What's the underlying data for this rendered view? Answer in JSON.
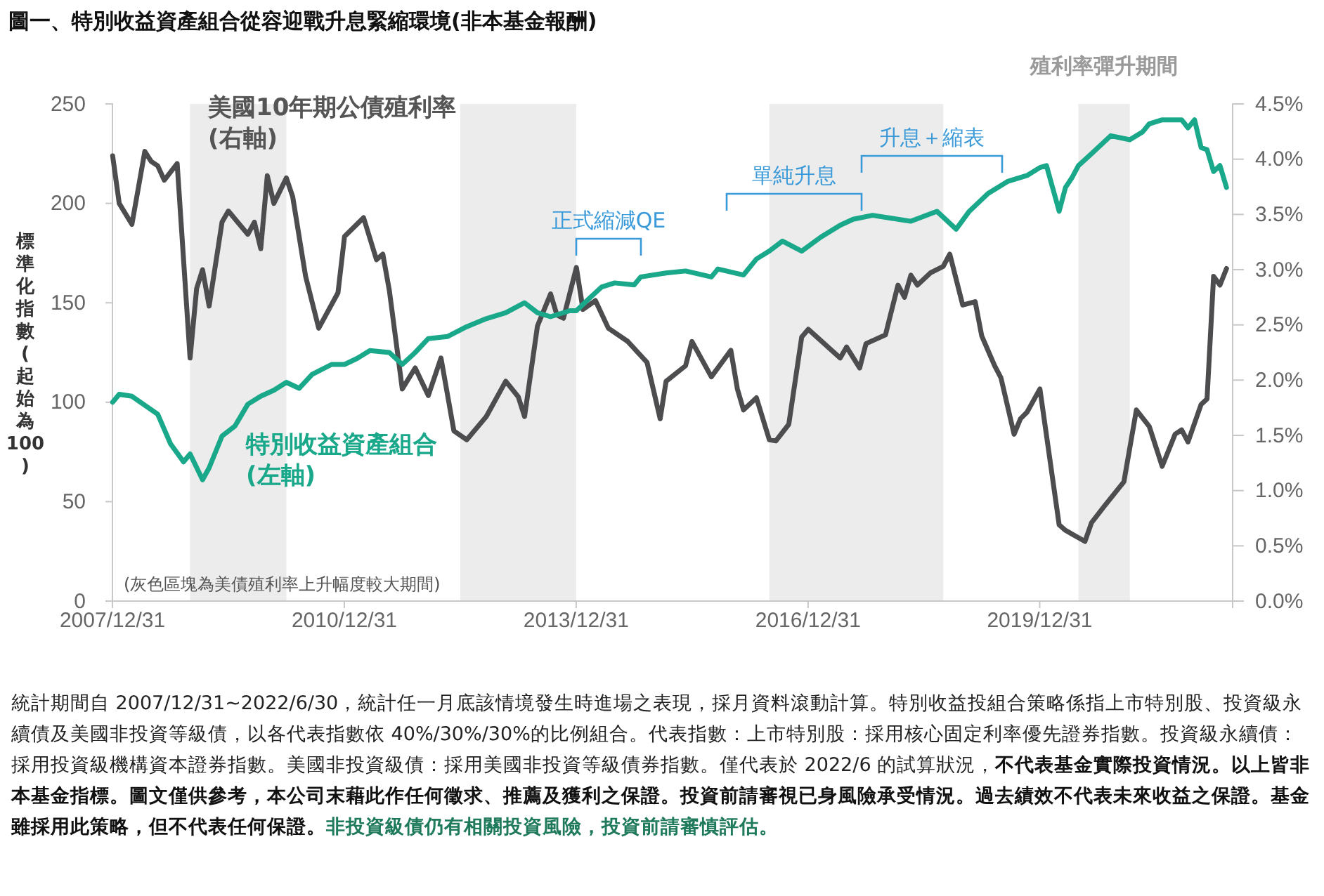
{
  "chart_data": {
    "type": "line",
    "title": "圖一、特別收益資產組合從容迎戰升息緊縮環境(非本基金報酬)",
    "ylabel": "標準化指數(起始為100)",
    "xlim": [
      "2007-12-31",
      "2022-06-30"
    ],
    "xticks": [
      {
        "value": "2007-12-31",
        "label": "2007/12/31"
      },
      {
        "value": "2010-12-31",
        "label": "2010/12/31"
      },
      {
        "value": "2013-12-31",
        "label": "2013/12/31"
      },
      {
        "value": "2016-12-31",
        "label": "2016/12/31"
      },
      {
        "value": "2019-12-31",
        "label": "2019/12/31"
      }
    ],
    "ylim": [
      0,
      250
    ],
    "yticks": [
      0,
      50,
      100,
      150,
      200,
      250
    ],
    "y2lim": [
      0,
      4.5
    ],
    "y2ticks": [
      {
        "value": 0,
        "label": "0.0%"
      },
      {
        "value": 0.5,
        "label": "0.5%"
      },
      {
        "value": 1,
        "label": "1.0%"
      },
      {
        "value": 1.5,
        "label": "1.5%"
      },
      {
        "value": 2,
        "label": "2.0%"
      },
      {
        "value": 2.5,
        "label": "2.5%"
      },
      {
        "value": 3,
        "label": "3.0%"
      },
      {
        "value": 3.5,
        "label": "3.5%"
      },
      {
        "value": 4,
        "label": "4.0%"
      },
      {
        "value": 4.5,
        "label": "4.5%"
      }
    ],
    "grid": false,
    "series": [
      {
        "name": "美國10年期公債殖利率 (右軸)",
        "color": "#4d4d4f",
        "axis": "y2",
        "x": [
          "2008-01",
          "2008-02",
          "2008-04",
          "2008-06",
          "2008-07",
          "2008-08",
          "2008-09",
          "2008-11",
          "2009-01",
          "2009-02",
          "2009-03",
          "2009-04",
          "2009-06",
          "2009-07",
          "2009-10",
          "2009-11",
          "2009-12",
          "2010-01",
          "2010-02",
          "2010-04",
          "2010-05",
          "2010-07",
          "2010-09",
          "2010-12",
          "2011-01",
          "2011-04",
          "2011-06",
          "2011-07",
          "2011-08",
          "2011-10",
          "2011-12",
          "2012-02",
          "2012-04",
          "2012-06",
          "2012-08",
          "2012-11",
          "2013-02",
          "2013-04",
          "2013-05",
          "2013-07",
          "2013-09",
          "2013-10",
          "2013-11",
          "2014-01",
          "2014-02",
          "2014-04",
          "2014-06",
          "2014-09",
          "2014-12",
          "2015-02",
          "2015-03",
          "2015-06",
          "2015-07",
          "2015-10",
          "2016-01",
          "2016-02",
          "2016-03",
          "2016-05",
          "2016-07",
          "2016-08",
          "2016-10",
          "2016-12",
          "2017-01",
          "2017-06",
          "2017-07",
          "2017-09",
          "2017-10",
          "2018-01",
          "2018-03",
          "2018-04",
          "2018-05",
          "2018-06",
          "2018-08",
          "2018-10",
          "2018-11",
          "2019-01",
          "2019-03",
          "2019-04",
          "2019-06",
          "2019-07",
          "2019-09",
          "2019-10",
          "2019-11",
          "2020-01",
          "2020-04",
          "2020-05",
          "2020-08",
          "2020-09",
          "2020-11",
          "2021-02",
          "2021-04",
          "2021-06",
          "2021-08",
          "2021-10",
          "2021-11",
          "2021-12",
          "2022-02",
          "2022-03",
          "2022-04",
          "2022-05",
          "2022-06"
        ],
        "values": [
          4.03,
          3.6,
          3.41,
          4.07,
          3.98,
          3.94,
          3.81,
          3.96,
          2.2,
          2.83,
          3.0,
          2.67,
          3.43,
          3.53,
          3.32,
          3.43,
          3.19,
          3.85,
          3.6,
          3.83,
          3.66,
          2.94,
          2.47,
          2.79,
          3.3,
          3.47,
          3.09,
          3.14,
          2.81,
          1.92,
          2.11,
          1.86,
          2.2,
          1.54,
          1.46,
          1.67,
          1.99,
          1.85,
          1.67,
          2.49,
          2.78,
          2.59,
          2.56,
          3.02,
          2.64,
          2.72,
          2.47,
          2.35,
          2.16,
          1.65,
          1.99,
          2.13,
          2.35,
          2.03,
          2.27,
          1.92,
          1.73,
          1.84,
          1.46,
          1.45,
          1.6,
          2.39,
          2.46,
          2.2,
          2.3,
          2.11,
          2.33,
          2.41,
          2.86,
          2.75,
          2.95,
          2.86,
          2.97,
          3.03,
          3.14,
          2.68,
          2.71,
          2.4,
          2.13,
          2.02,
          1.51,
          1.65,
          1.71,
          1.92,
          0.69,
          0.64,
          0.54,
          0.71,
          0.86,
          1.08,
          1.73,
          1.58,
          1.22,
          1.51,
          1.55,
          1.44,
          1.78,
          1.83,
          2.94,
          2.86,
          3.01
        ]
      },
      {
        "name": "特別收益資產組合 (左軸)",
        "color": "#1aa88a",
        "x": [
          "2008-01",
          "2008-02",
          "2008-04",
          "2008-08",
          "2008-10",
          "2008-12",
          "2009-01",
          "2009-03",
          "2009-04",
          "2009-06",
          "2009-08",
          "2009-10",
          "2009-12",
          "2010-02",
          "2010-04",
          "2010-06",
          "2010-08",
          "2010-11",
          "2011-01",
          "2011-03",
          "2011-05",
          "2011-08",
          "2011-10",
          "2011-12",
          "2012-02",
          "2012-05",
          "2012-08",
          "2012-11",
          "2013-02",
          "2013-05",
          "2013-07",
          "2013-09",
          "2013-12",
          "2014-01",
          "2014-03",
          "2014-05",
          "2014-07",
          "2014-10",
          "2014-11",
          "2015-03",
          "2015-06",
          "2015-10",
          "2015-11",
          "2016-03",
          "2016-05",
          "2016-07",
          "2016-09",
          "2016-12",
          "2017-03",
          "2017-06",
          "2017-08",
          "2017-11",
          "2018-03",
          "2018-05",
          "2018-09",
          "2018-12",
          "2019-02",
          "2019-05",
          "2019-08",
          "2019-11",
          "2020-01",
          "2020-02",
          "2020-04",
          "2020-05",
          "2020-06",
          "2020-07",
          "2020-09",
          "2020-12",
          "2021-03",
          "2021-05",
          "2021-06",
          "2021-08",
          "2021-11",
          "2021-12",
          "2022-01",
          "2022-02",
          "2022-03",
          "2022-04",
          "2022-05",
          "2022-06"
        ],
        "values": [
          100,
          104,
          103,
          94,
          79,
          70,
          74,
          61,
          67,
          83,
          88,
          99,
          103,
          106,
          110,
          107,
          114,
          119,
          119,
          122,
          126,
          125,
          119,
          125,
          132,
          133,
          138,
          142,
          145,
          150,
          145,
          143,
          146,
          146,
          152,
          158,
          160,
          159,
          163,
          165,
          166,
          163,
          167,
          164,
          172,
          176,
          181,
          176,
          183,
          189,
          192,
          194,
          192,
          191,
          196,
          187,
          196,
          205,
          211,
          214,
          218,
          219,
          196,
          208,
          213,
          219,
          225,
          234,
          232,
          236,
          240,
          242,
          242,
          238,
          242,
          228,
          227,
          216,
          219,
          208
        ]
      }
    ],
    "bands": [
      {
        "axis": "x",
        "from": "2009-01",
        "to": "2010-04",
        "color": "#ececec"
      },
      {
        "axis": "x",
        "from": "2012-07",
        "to": "2013-12-31",
        "color": "#ececec"
      },
      {
        "axis": "x",
        "from": "2016-07",
        "to": "2018-10",
        "color": "#ececec"
      },
      {
        "axis": "x",
        "from": "2020-07",
        "to": "2021-03",
        "color": "#ececec",
        "label": "殖利率彈升期間"
      }
    ],
    "annotations": [
      "正式縮減QE",
      "單純升息",
      "升息＋縮表",
      "(灰色區塊為美債殖利率上升幅度較大期間)",
      "統計期間自 2007/12/31~2022/6/30，統計任一月底該情境發生時進場之表現，採月資料滾動計算。特別收益投組合策略係指上市特別股、投資級永續債及美國非投資等級債，以各代表指數依 40%/30%/30%的比例組合。代表指數：上市特別股：採用核心固定利率優先證券指數。投資級永續債：採用投資級機構資本證券指數。美國非投資級債：採用美國非投資等級債券指數。僅代表於 2022/6 的試算狀況，",
      "不代表基金實際投資情況。以上皆非本基金指標。圖文僅供參考，本公司末藉此作任何徵求、推薦及獲利之保證。投資前請審視已身風險承受情況。過去績效不代表未來收益之保證。基金雖採用此策略，但不代表任何保證。",
      "非投資級債仍有相關投資風險，投資前請審慎評估。"
    ]
  }
}
